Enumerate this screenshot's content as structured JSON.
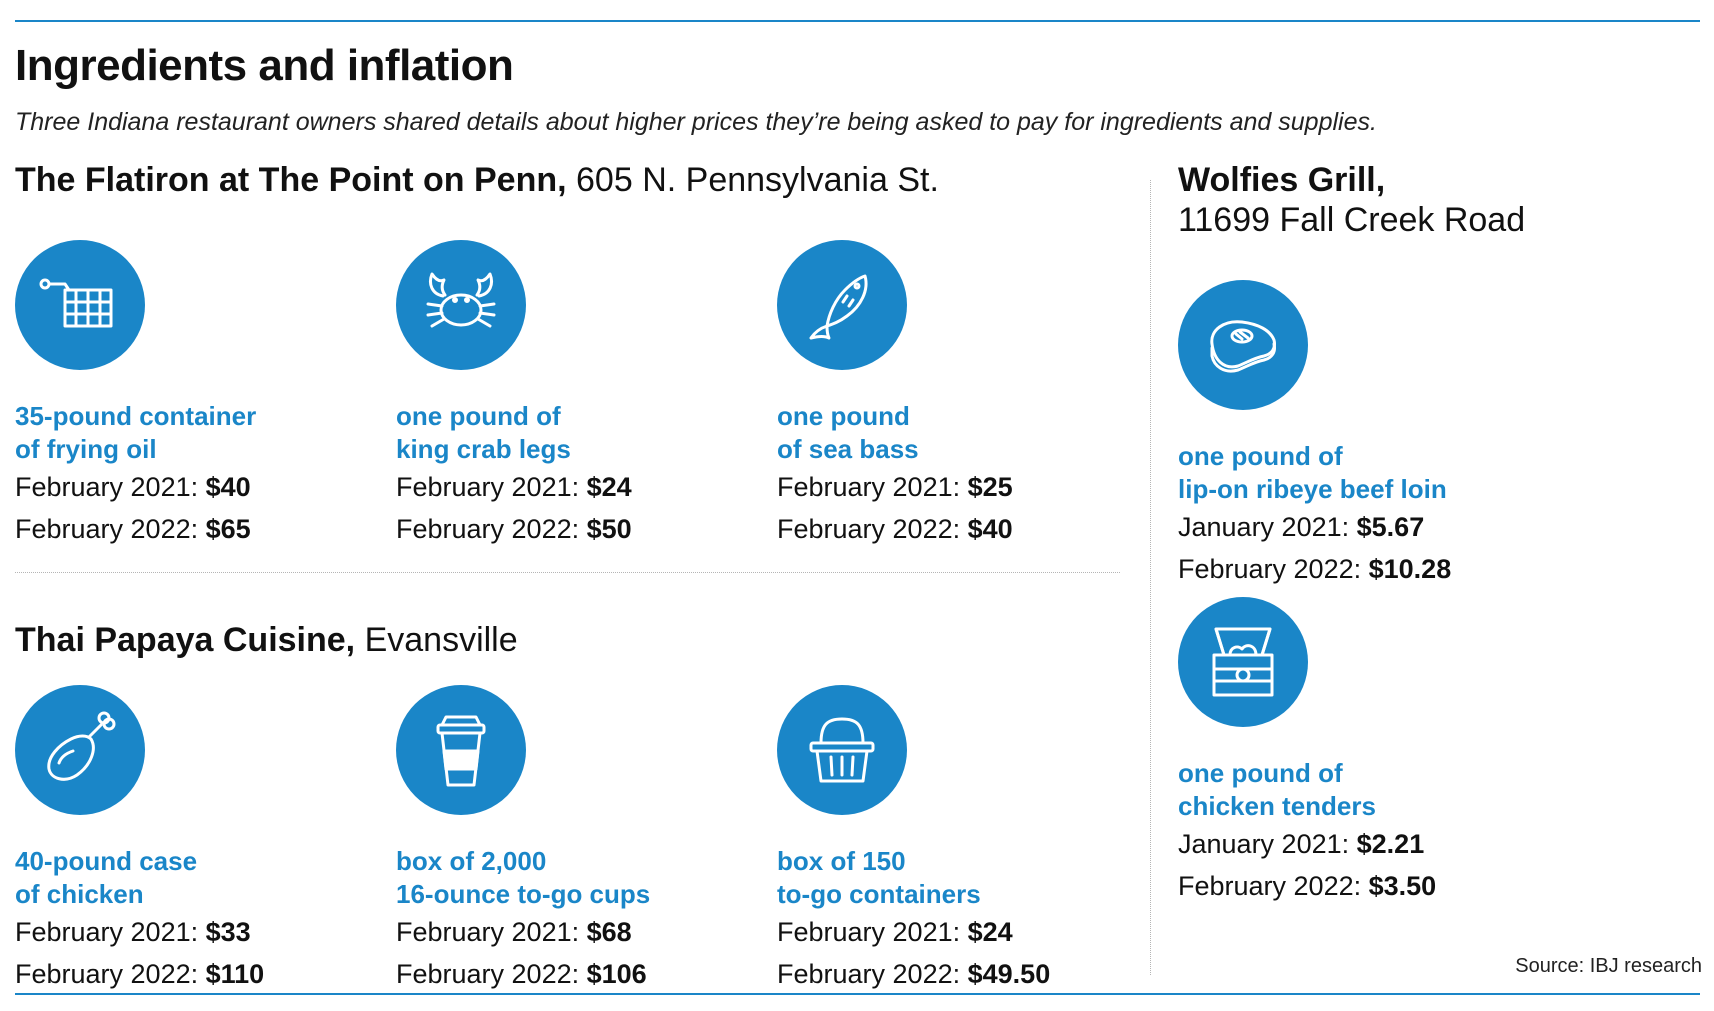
{
  "title": "Ingredients and inflation",
  "subtitle": "Three Indiana restaurant owners shared details about higher prices they’re being asked to pay for ingredients and supplies.",
  "colors": {
    "accent": "#1a86c8",
    "text": "#111111",
    "divider": "#b5b5b5"
  },
  "restaurants": [
    {
      "name": "The Flatiron at The Point on Penn,",
      "location": "605 N. Pennsylvania St.",
      "items": [
        {
          "icon": "fryer-basket-icon",
          "label_lines": [
            "35-pound container",
            "of frying oil"
          ],
          "prices": [
            {
              "label": "February 2021:",
              "value": "$40"
            },
            {
              "label": "February 2022:",
              "value": "$65"
            }
          ]
        },
        {
          "icon": "crab-icon",
          "label_lines": [
            "one pound of",
            "king crab legs"
          ],
          "prices": [
            {
              "label": "February 2021:",
              "value": "$24"
            },
            {
              "label": "February 2022:",
              "value": "$50"
            }
          ]
        },
        {
          "icon": "fish-icon",
          "label_lines": [
            "one pound",
            "of sea bass"
          ],
          "prices": [
            {
              "label": "February 2021:",
              "value": "$25"
            },
            {
              "label": "February 2022:",
              "value": "$40"
            }
          ]
        }
      ]
    },
    {
      "name": "Thai Papaya Cuisine,",
      "location": "Evansville",
      "items": [
        {
          "icon": "chicken-leg-icon",
          "label_lines": [
            "40-pound case",
            "of chicken"
          ],
          "prices": [
            {
              "label": "February 2021:",
              "value": "$33"
            },
            {
              "label": "February 2022:",
              "value": "$110"
            }
          ]
        },
        {
          "icon": "to-go-cup-icon",
          "label_lines": [
            "box of 2,000",
            "16-ounce to-go cups"
          ],
          "prices": [
            {
              "label": "February 2021:",
              "value": "$68"
            },
            {
              "label": "February 2022:",
              "value": "$106"
            }
          ]
        },
        {
          "icon": "to-go-container-icon",
          "label_lines": [
            "box of 150",
            "to-go containers"
          ],
          "prices": [
            {
              "label": "February 2021:",
              "value": "$24"
            },
            {
              "label": "February 2022:",
              "value": "$49.50"
            }
          ]
        }
      ]
    },
    {
      "name": "Wolfies Grill,",
      "location": "11699 Fall Creek Road",
      "items": [
        {
          "icon": "steak-icon",
          "label_lines": [
            "one pound of",
            "lip-on ribeye beef loin"
          ],
          "prices": [
            {
              "label": "January 2021:",
              "value": "$5.67"
            },
            {
              "label": "February 2022:",
              "value": "$10.28"
            }
          ]
        },
        {
          "icon": "chicken-tenders-box-icon",
          "label_lines": [
            "one pound of",
            "chicken tenders"
          ],
          "prices": [
            {
              "label": "January 2021:",
              "value": "$2.21"
            },
            {
              "label": "February 2022:",
              "value": "$3.50"
            }
          ]
        }
      ]
    }
  ],
  "source": "Source: IBJ research"
}
